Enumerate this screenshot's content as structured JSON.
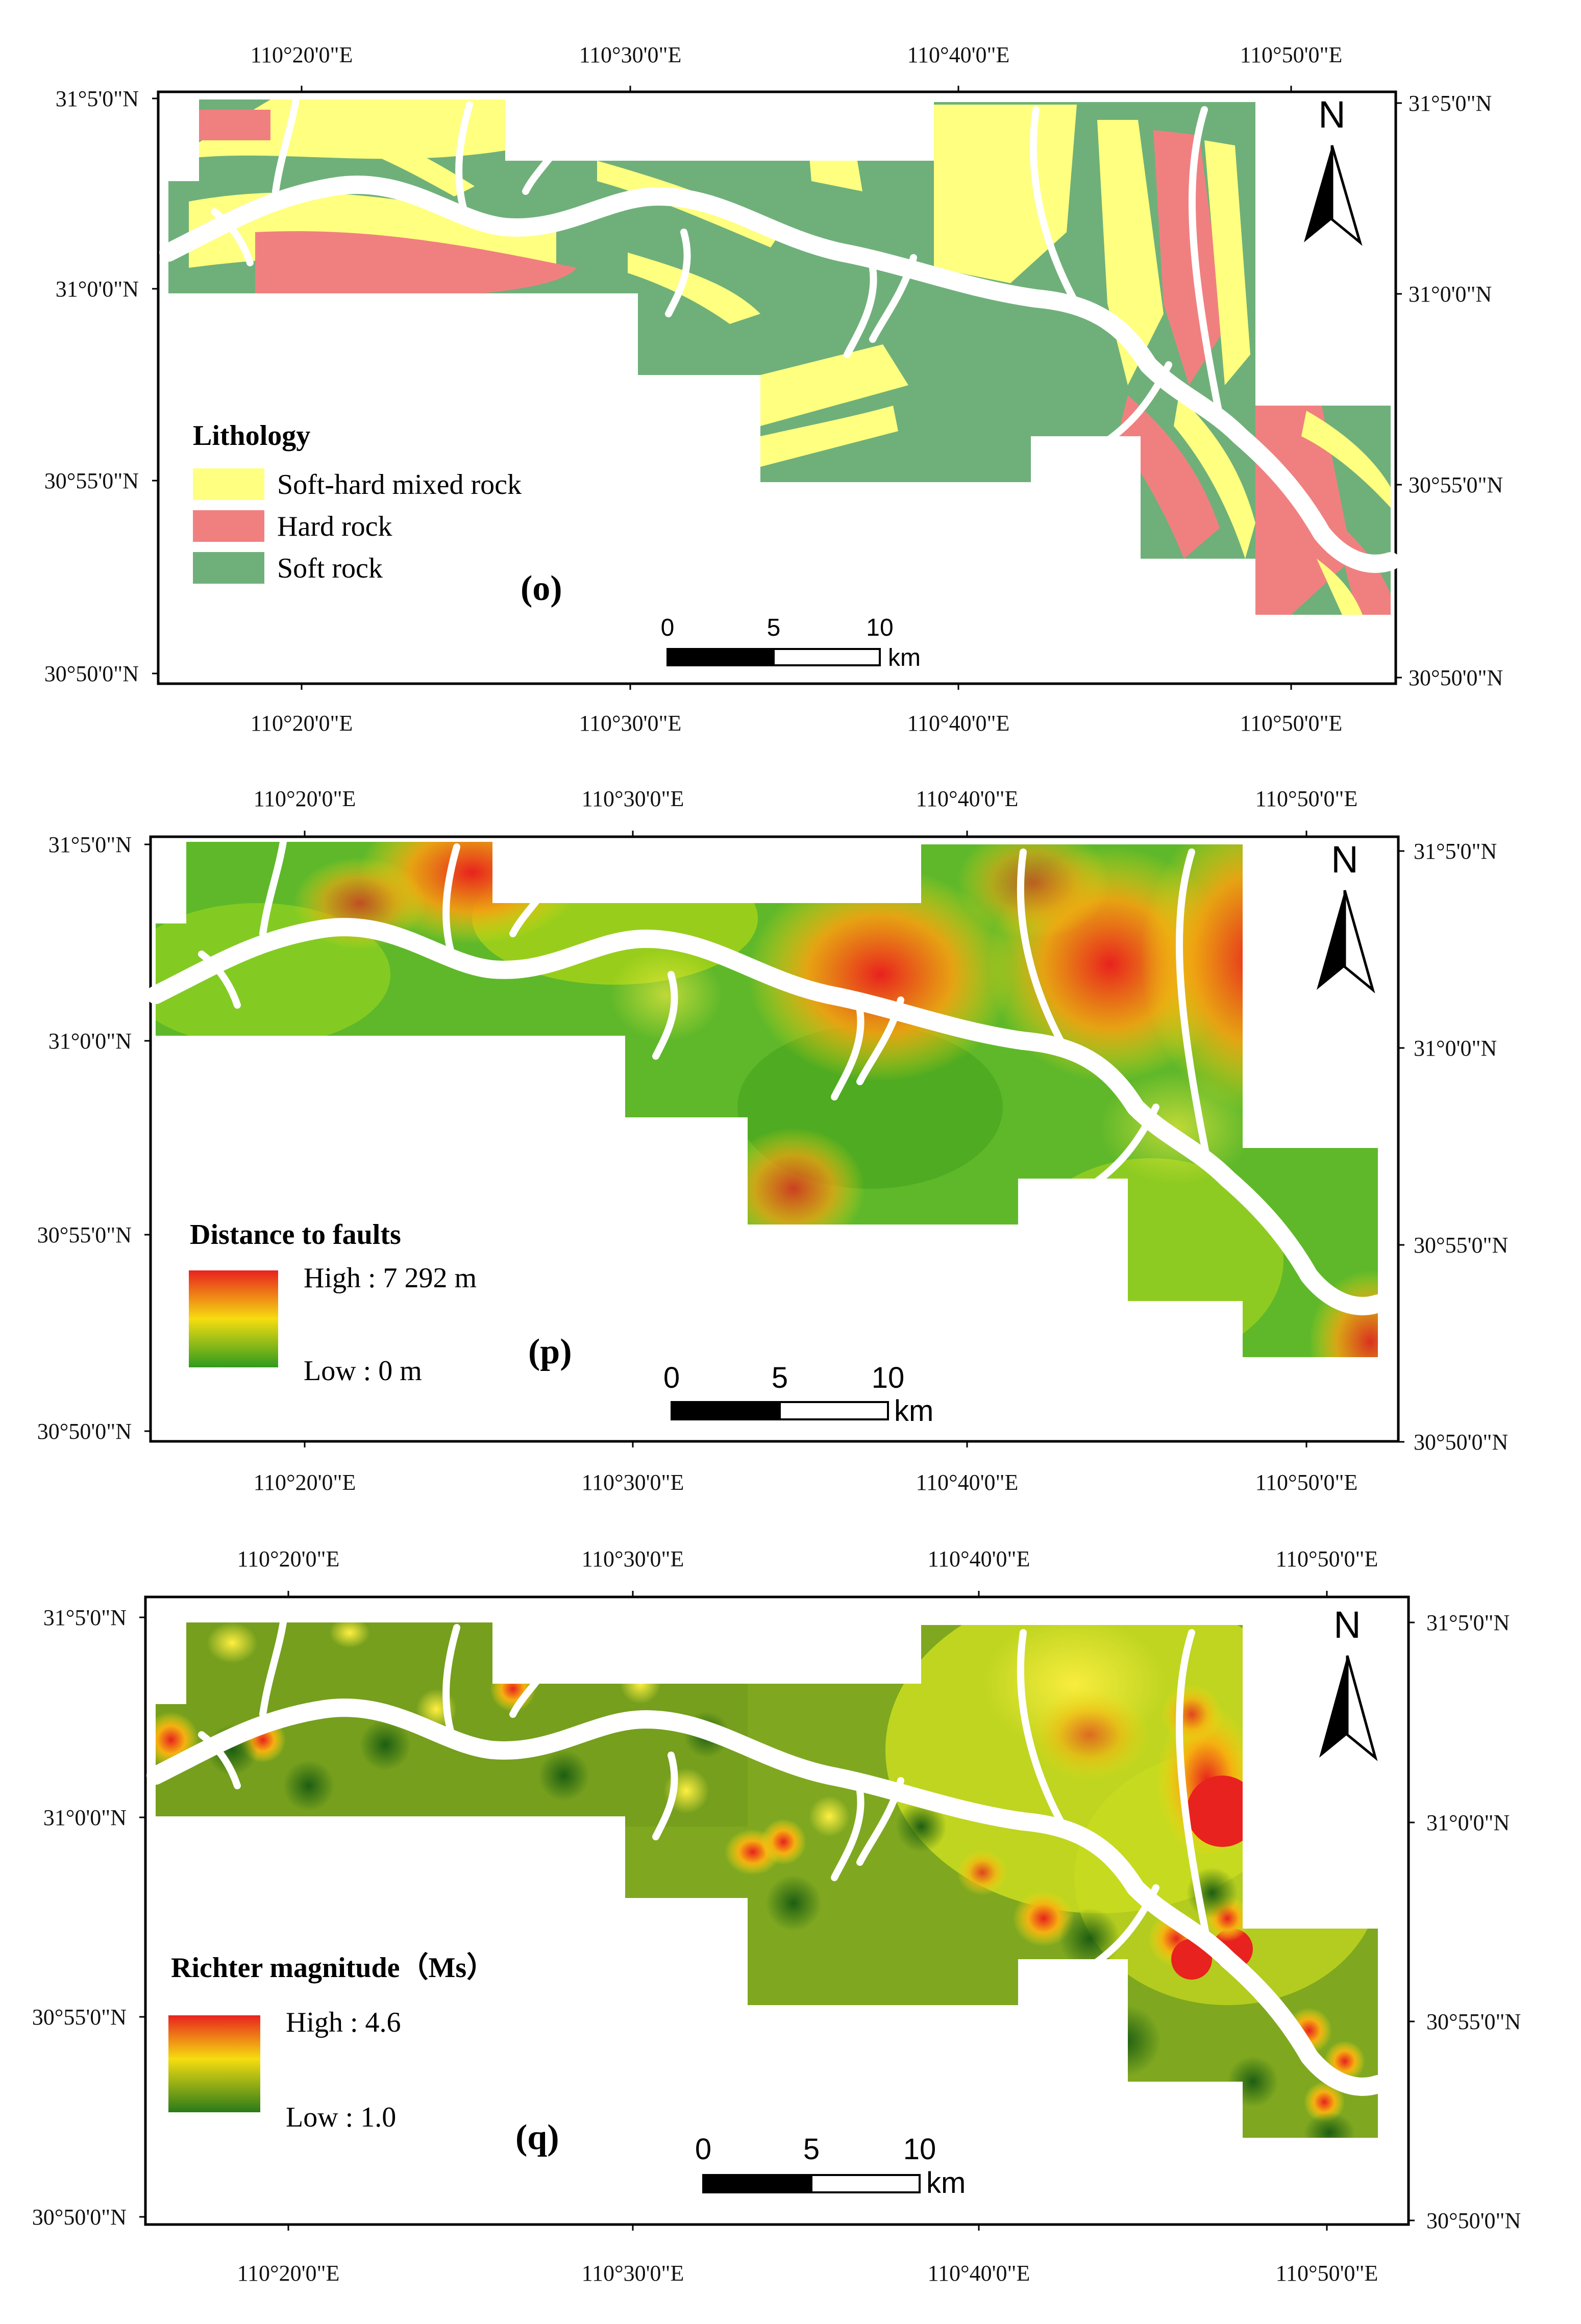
{
  "coord_labels": {
    "lon": [
      "110°20'0\"E",
      "110°30'0\"E",
      "110°40'0\"E",
      "110°50'0\"E"
    ],
    "lat": [
      "31°5'0\"N",
      "31°0'0\"N",
      "30°55'0\"N",
      "30°50'0\"N"
    ]
  },
  "north_label": "N",
  "scale_bar": {
    "ticks": [
      "0",
      "5",
      "10"
    ],
    "unit": "km"
  },
  "colors": {
    "soft_hard": "#ffff80",
    "hard": "#f08080",
    "soft": "#6fb07a",
    "river": "#ffffff",
    "high": "#e8221e",
    "mid": "#f5dd10",
    "low": "#2f9a1f"
  },
  "panels": [
    {
      "id": "o",
      "panel_label": "(o)",
      "legend_title": "Lithology",
      "legend_items": [
        {
          "label": "Soft-hard mixed rock",
          "color": "#ffff80"
        },
        {
          "label": "Hard rock",
          "color": "#f08080"
        },
        {
          "label": "Soft rock",
          "color": "#6fb07a"
        }
      ]
    },
    {
      "id": "p",
      "panel_label": "(p)",
      "legend_title": "Distance to faults",
      "legend_high": "High : 7 292 m",
      "legend_low": "Low : 0 m"
    },
    {
      "id": "q",
      "panel_label": "(q)",
      "legend_title": "Richter magnitude（Ms）",
      "legend_high": "High : 4.6",
      "legend_low": "Low : 1.0"
    }
  ]
}
